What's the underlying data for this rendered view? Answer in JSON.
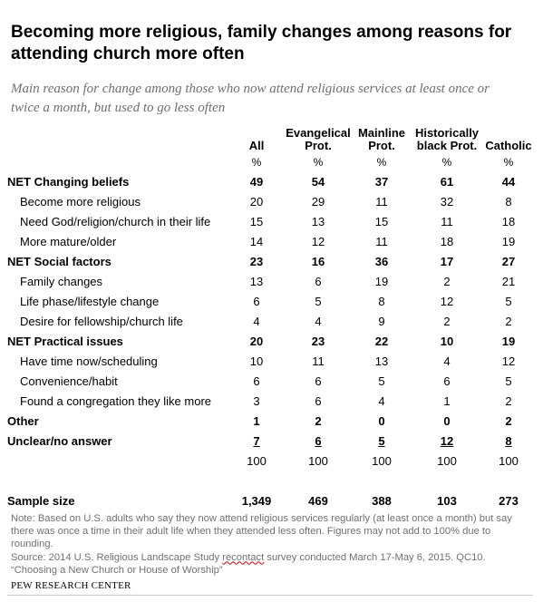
{
  "title": "Becoming more religious, family changes among reasons for attending church more often",
  "subtitle": "Main reason for change among those who now attend religious services at least once or twice a month, but used to go less often",
  "columns": [
    "All",
    "Evangelical Prot.",
    "Mainline Prot.",
    "Historically black Prot.",
    "Catholic"
  ],
  "percent_row": [
    "%",
    "%",
    "%",
    "%",
    "%"
  ],
  "rows": [
    {
      "label": "NET Changing beliefs",
      "values": [
        "49",
        "54",
        "37",
        "61",
        "44"
      ]
    },
    {
      "label": "Become more religious",
      "values": [
        "20",
        "29",
        "11",
        "32",
        "8"
      ]
    },
    {
      "label": "Need God/religion/church in their life",
      "values": [
        "15",
        "13",
        "15",
        "11",
        "18"
      ]
    },
    {
      "label": "More mature/older",
      "values": [
        "14",
        "12",
        "11",
        "18",
        "19"
      ]
    },
    {
      "label": "NET Social factors",
      "values": [
        "23",
        "16",
        "36",
        "17",
        "27"
      ]
    },
    {
      "label": "Family changes",
      "values": [
        "13",
        "6",
        "19",
        "2",
        "21"
      ]
    },
    {
      "label": "Life phase/lifestyle change",
      "values": [
        "6",
        "5",
        "8",
        "12",
        "5"
      ]
    },
    {
      "label": "Desire for fellowship/church life",
      "values": [
        "4",
        "4",
        "9",
        "2",
        "2"
      ]
    },
    {
      "label": "NET Practical issues",
      "values": [
        "20",
        "23",
        "22",
        "10",
        "19"
      ]
    },
    {
      "label": "Have time now/scheduling",
      "values": [
        "10",
        "11",
        "13",
        "4",
        "12"
      ]
    },
    {
      "label": "Convenience/habit",
      "values": [
        "6",
        "6",
        "5",
        "6",
        "5"
      ]
    },
    {
      "label": "Found a congregation they like more",
      "values": [
        "3",
        "6",
        "4",
        "1",
        "2"
      ]
    },
    {
      "label": "Other",
      "values": [
        "1",
        "2",
        "0",
        "0",
        "2"
      ]
    },
    {
      "label": "Unclear/no answer",
      "values": [
        "7",
        "6",
        "5",
        "12",
        "8"
      ]
    }
  ],
  "totals": [
    "100",
    "100",
    "100",
    "100",
    "100"
  ],
  "sample_size": {
    "label": "Sample size",
    "values": [
      "1,349",
      "469",
      "388",
      "103",
      "273"
    ]
  },
  "note": {
    "line1": "Note: Based on U.S. adults who say they now attend religious services regularly (at least once a month) but say",
    "line2": "there was once a time in their adult life when they attended less often. Figures may not add to 100% due to",
    "line3": "rounding.",
    "source_pre": "Source: 2014 U.S. Religious Landscape Study ",
    "source_recontact": "recontact",
    "source_post": " survey conducted March 17-May 6, 2015. QC10.",
    "line5": "“Choosing a New Church or House of Worship”"
  },
  "brand": "PEW RESEARCH CENTER"
}
